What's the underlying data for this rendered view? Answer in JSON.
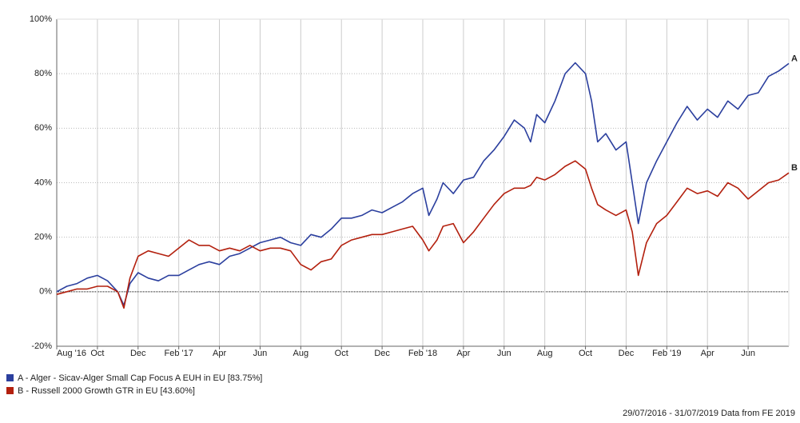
{
  "chart_data": {
    "type": "line",
    "x": [
      0,
      0.5,
      1,
      1.5,
      2,
      2.5,
      3,
      3.3,
      3.6,
      4,
      4.5,
      5,
      5.5,
      6,
      6.5,
      7,
      7.5,
      8,
      8.5,
      9,
      9.5,
      10,
      10.5,
      11,
      11.5,
      12,
      12.5,
      13,
      13.5,
      14,
      14.5,
      15,
      15.5,
      16,
      16.5,
      17,
      17.5,
      18,
      18.3,
      18.7,
      19,
      19.5,
      20,
      20.5,
      21,
      21.5,
      22,
      22.5,
      23,
      23.3,
      23.6,
      24,
      24.5,
      25,
      25.5,
      26,
      26.3,
      26.6,
      27,
      27.5,
      28,
      28.3,
      28.6,
      29,
      29.5,
      30,
      30.5,
      31,
      31.5,
      32,
      32.5,
      33,
      33.5,
      34,
      34.5,
      35,
      35.5,
      36
    ],
    "xlim": [
      0,
      36
    ],
    "xticks": [
      {
        "value": 0,
        "label": "Aug '16"
      },
      {
        "value": 2,
        "label": "Oct"
      },
      {
        "value": 4,
        "label": "Dec"
      },
      {
        "value": 6,
        "label": "Feb '17"
      },
      {
        "value": 8,
        "label": "Apr"
      },
      {
        "value": 10,
        "label": "Jun"
      },
      {
        "value": 12,
        "label": "Aug"
      },
      {
        "value": 14,
        "label": "Oct"
      },
      {
        "value": 16,
        "label": "Dec"
      },
      {
        "value": 18,
        "label": "Feb '18"
      },
      {
        "value": 20,
        "label": "Apr"
      },
      {
        "value": 22,
        "label": "Jun"
      },
      {
        "value": 24,
        "label": "Aug"
      },
      {
        "value": 26,
        "label": "Oct"
      },
      {
        "value": 28,
        "label": "Dec"
      },
      {
        "value": 30,
        "label": "Feb '19"
      },
      {
        "value": 32,
        "label": "Apr"
      },
      {
        "value": 34,
        "label": "Jun"
      }
    ],
    "ylim": [
      -20,
      100
    ],
    "yticks": [
      {
        "value": -20,
        "label": "-20%"
      },
      {
        "value": 0,
        "label": "0%"
      },
      {
        "value": 20,
        "label": "20%"
      },
      {
        "value": 40,
        "label": "40%"
      },
      {
        "value": 60,
        "label": "60%"
      },
      {
        "value": 80,
        "label": "80%"
      },
      {
        "value": 100,
        "label": "100%"
      }
    ],
    "grid": true,
    "series": [
      {
        "name": "A - Alger - Sicav-Alger Small Cap Focus A EUH in EU [83.75%]",
        "end_label": "A",
        "color": "#2b3f9e",
        "values": [
          0,
          2,
          3,
          5,
          6,
          4,
          0,
          -5,
          3,
          7,
          5,
          4,
          6,
          6,
          8,
          10,
          11,
          10,
          13,
          14,
          16,
          18,
          19,
          20,
          18,
          17,
          21,
          20,
          23,
          27,
          27,
          28,
          30,
          29,
          31,
          33,
          36,
          38,
          28,
          34,
          40,
          36,
          41,
          42,
          48,
          52,
          57,
          63,
          60,
          55,
          65,
          62,
          70,
          80,
          84,
          80,
          70,
          55,
          58,
          52,
          55,
          40,
          25,
          40,
          48,
          55,
          62,
          68,
          63,
          67,
          64,
          70,
          67,
          72,
          73,
          79,
          81,
          83.75
        ]
      },
      {
        "name": "B - Russell 2000 Growth GTR in EU [43.60%]",
        "end_label": "B",
        "color": "#b3200e",
        "values": [
          -1,
          0,
          1,
          1,
          2,
          2,
          0,
          -6,
          5,
          13,
          15,
          14,
          13,
          16,
          19,
          17,
          17,
          15,
          16,
          15,
          17,
          15,
          16,
          16,
          15,
          10,
          8,
          11,
          12,
          17,
          19,
          20,
          21,
          21,
          22,
          23,
          24,
          19,
          15,
          19,
          24,
          25,
          18,
          22,
          27,
          32,
          36,
          38,
          38,
          39,
          42,
          41,
          43,
          46,
          48,
          45,
          38,
          32,
          30,
          28,
          30,
          22,
          6,
          18,
          25,
          28,
          33,
          38,
          36,
          37,
          35,
          40,
          38,
          34,
          37,
          40,
          41,
          43.6
        ]
      }
    ],
    "footer": "29/07/2016 - 31/07/2019 Data from FE 2019"
  }
}
